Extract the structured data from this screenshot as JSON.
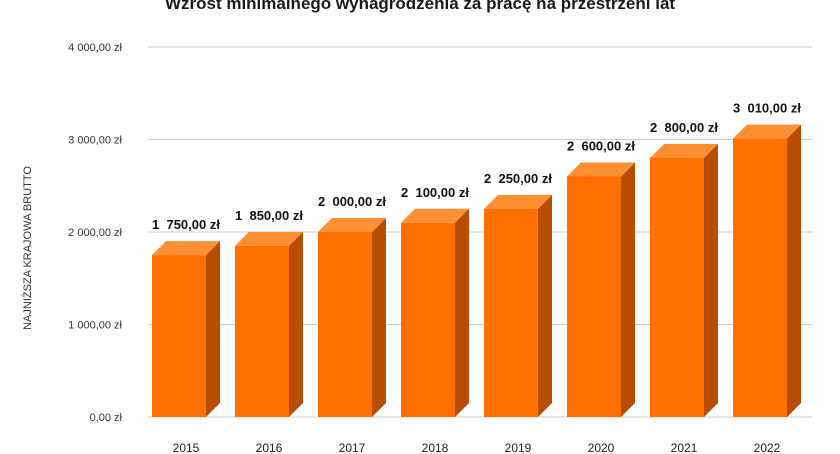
{
  "chart_data": {
    "type": "bar",
    "title": "Wzrost minimalnego wynagrodzenia za pracę na przestrzeni lat",
    "ylabel": "NAJNIŻSZA KRAJOWA BRUTTO",
    "xlabel": "",
    "categories": [
      "2015",
      "2016",
      "2017",
      "2018",
      "2019",
      "2020",
      "2021",
      "2022"
    ],
    "values": [
      1750,
      1850,
      2000,
      2100,
      2250,
      2600,
      2800,
      3010
    ],
    "data_labels": [
      "1  750,00 zł",
      "1  850,00 zł",
      "2  000,00 zł",
      "2  100,00 zł",
      "2  250,00 zł",
      "2  600,00 zł",
      "2  800,00 zł",
      "3  010,00 zł"
    ],
    "y_ticks": [
      0,
      1000,
      2000,
      3000,
      4000
    ],
    "y_tick_labels": [
      "0,00 zł",
      "1 000,00 zł",
      "2 000,00 zł",
      "3 000,00 zł",
      "4 000,00 zł"
    ],
    "ylim": [
      0,
      4000
    ],
    "grid": true,
    "legend": "none",
    "colors": {
      "bar_front": "#ff7000",
      "bar_top": "#ff8f33",
      "bar_side": "#b84c00",
      "grid": "#cccccc"
    }
  }
}
